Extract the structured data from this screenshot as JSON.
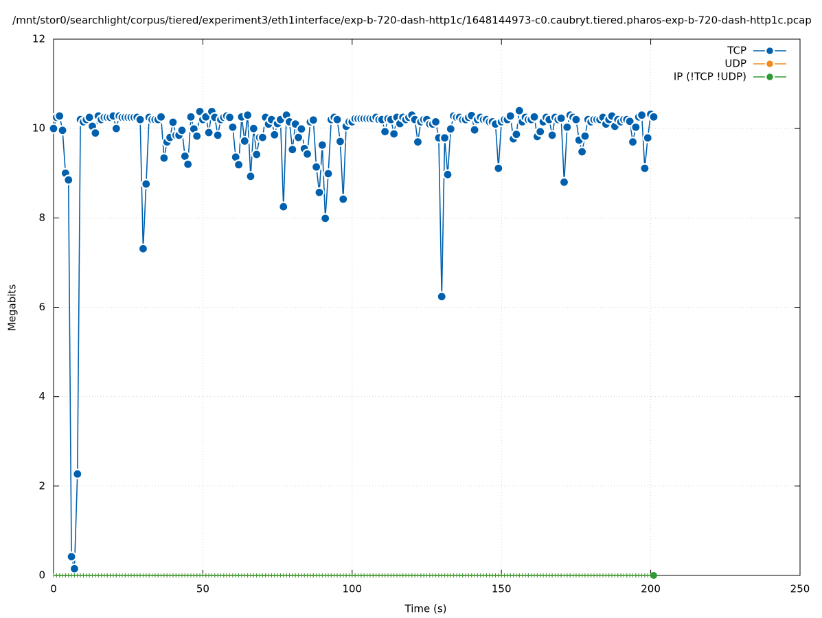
{
  "chart_data": {
    "type": "line",
    "title": "/mnt/stor0/searchlight/corpus/tiered/experiment3/eth1interface/exp-b-720-dash-http1c/1648144973-c0.caubryt.tiered.pharos-exp-b-720-dash-http1c.pcap",
    "x_label": "Time (s)",
    "y_label": "Megabits",
    "xlim": [
      0,
      250
    ],
    "xticks": [
      0,
      50,
      100,
      150,
      200,
      250
    ],
    "ylim": [
      0,
      12
    ],
    "yticks": [
      0,
      2,
      4,
      6,
      8,
      10,
      12
    ],
    "grid": true,
    "legend": "top-right",
    "x": [
      0,
      1,
      2,
      3,
      4,
      5,
      6,
      7,
      8,
      9,
      10,
      11,
      12,
      13,
      14,
      15,
      16,
      17,
      18,
      19,
      20,
      21,
      22,
      23,
      24,
      25,
      26,
      27,
      28,
      29,
      30,
      31,
      32,
      33,
      34,
      35,
      36,
      37,
      38,
      39,
      40,
      41,
      42,
      43,
      44,
      45,
      46,
      47,
      48,
      49,
      50,
      51,
      52,
      53,
      54,
      55,
      56,
      57,
      58,
      59,
      60,
      61,
      62,
      63,
      64,
      65,
      66,
      67,
      68,
      69,
      70,
      71,
      72,
      73,
      74,
      75,
      76,
      77,
      78,
      79,
      80,
      81,
      82,
      83,
      84,
      85,
      86,
      87,
      88,
      89,
      90,
      91,
      92,
      93,
      94,
      95,
      96,
      97,
      98,
      99,
      100,
      101,
      102,
      103,
      104,
      105,
      106,
      107,
      108,
      109,
      110,
      111,
      112,
      113,
      114,
      115,
      116,
      117,
      118,
      119,
      120,
      121,
      122,
      123,
      124,
      125,
      126,
      127,
      128,
      129,
      130,
      131,
      132,
      133,
      134,
      135,
      136,
      137,
      138,
      139,
      140,
      141,
      142,
      143,
      144,
      145,
      146,
      147,
      148,
      149,
      150,
      151,
      152,
      153,
      154,
      155,
      156,
      157,
      158,
      159,
      160,
      161,
      162,
      163,
      164,
      165,
      166,
      167,
      168,
      169,
      170,
      171,
      172,
      173,
      174,
      175,
      176,
      177,
      178,
      179,
      180,
      181,
      182,
      183,
      184,
      185,
      186,
      187,
      188,
      189,
      190,
      191,
      192,
      193,
      194,
      195,
      196,
      197,
      198,
      199,
      200,
      201
    ],
    "series": [
      {
        "name": "TCP",
        "color": "#0060ad",
        "values": [
          10.0,
          10.25,
          10.28,
          9.96,
          9.0,
          8.85,
          0.42,
          0.15,
          2.27,
          10.2,
          10.15,
          10.2,
          10.25,
          10.05,
          9.9,
          10.28,
          10.2,
          10.25,
          10.25,
          10.25,
          10.28,
          10.0,
          10.28,
          10.25,
          10.25,
          10.25,
          10.25,
          10.25,
          10.25,
          10.2,
          7.31,
          8.76,
          10.25,
          10.2,
          10.2,
          10.2,
          10.26,
          9.34,
          9.7,
          9.8,
          10.14,
          9.85,
          9.85,
          9.96,
          9.38,
          9.2,
          10.26,
          9.99,
          9.83,
          10.38,
          10.2,
          10.26,
          9.91,
          10.38,
          10.25,
          9.85,
          10.2,
          10.25,
          10.28,
          10.25,
          10.03,
          9.36,
          9.19,
          10.26,
          9.72,
          10.3,
          8.93,
          10.0,
          9.42,
          9.8,
          9.8,
          10.25,
          10.1,
          10.2,
          9.86,
          10.11,
          10.2,
          8.25,
          10.3,
          10.15,
          9.53,
          10.1,
          9.8,
          9.99,
          9.55,
          9.43,
          10.15,
          10.19,
          9.14,
          8.57,
          9.63,
          7.99,
          8.99,
          10.2,
          10.25,
          10.2,
          9.71,
          8.42,
          10.05,
          10.15,
          10.15,
          10.22,
          10.22,
          10.22,
          10.22,
          10.22,
          10.22,
          10.22,
          10.25,
          10.2,
          10.2,
          9.93,
          10.22,
          10.2,
          9.88,
          10.25,
          10.11,
          10.25,
          10.2,
          10.25,
          10.3,
          10.2,
          9.7,
          10.15,
          10.2,
          10.2,
          10.1,
          10.1,
          10.15,
          9.79,
          6.24,
          9.79,
          8.97,
          9.99,
          10.28,
          10.25,
          10.25,
          10.2,
          10.2,
          10.25,
          10.29,
          9.97,
          10.2,
          10.25,
          10.2,
          10.2,
          10.15,
          10.15,
          10.1,
          9.11,
          10.15,
          10.2,
          10.2,
          10.28,
          9.77,
          9.87,
          10.4,
          10.15,
          10.25,
          10.2,
          10.2,
          10.26,
          9.82,
          9.93,
          10.15,
          10.25,
          10.2,
          9.85,
          10.25,
          10.2,
          10.23,
          8.8,
          10.03,
          10.3,
          10.25,
          10.2,
          9.74,
          9.48,
          9.83,
          10.2,
          10.15,
          10.2,
          10.2,
          10.2,
          10.25,
          10.1,
          10.2,
          10.28,
          10.05,
          10.2,
          10.15,
          10.2,
          10.2,
          10.16,
          9.7,
          10.03,
          10.26,
          10.3,
          9.11,
          9.79,
          10.32,
          10.26
        ]
      },
      {
        "name": "UDP",
        "color": "#f28a1e",
        "values": [
          0,
          0,
          0,
          0,
          0,
          0,
          0,
          0,
          0,
          0,
          0,
          0,
          0,
          0,
          0,
          0,
          0,
          0,
          0,
          0,
          0,
          0,
          0,
          0,
          0,
          0,
          0,
          0,
          0,
          0,
          0,
          0,
          0,
          0,
          0,
          0,
          0,
          0,
          0,
          0,
          0,
          0,
          0,
          0,
          0,
          0,
          0,
          0,
          0,
          0,
          0,
          0,
          0,
          0,
          0,
          0,
          0,
          0,
          0,
          0,
          0,
          0,
          0,
          0,
          0,
          0,
          0,
          0,
          0,
          0,
          0,
          0,
          0,
          0,
          0,
          0,
          0,
          0,
          0,
          0,
          0,
          0,
          0,
          0,
          0,
          0,
          0,
          0,
          0,
          0,
          0,
          0,
          0,
          0,
          0,
          0,
          0,
          0,
          0,
          0,
          0,
          0,
          0,
          0,
          0,
          0,
          0,
          0,
          0,
          0,
          0,
          0,
          0,
          0,
          0,
          0,
          0,
          0,
          0,
          0,
          0,
          0,
          0,
          0,
          0,
          0,
          0,
          0,
          0,
          0,
          0,
          0,
          0,
          0,
          0,
          0,
          0,
          0,
          0,
          0,
          0,
          0,
          0,
          0,
          0,
          0,
          0,
          0,
          0,
          0,
          0,
          0,
          0,
          0,
          0,
          0,
          0,
          0,
          0,
          0,
          0,
          0,
          0,
          0,
          0,
          0,
          0,
          0,
          0,
          0,
          0,
          0,
          0,
          0,
          0,
          0,
          0,
          0,
          0,
          0,
          0,
          0,
          0,
          0,
          0,
          0,
          0,
          0,
          0,
          0,
          0,
          0,
          0,
          0,
          0,
          0,
          0,
          0,
          0,
          0,
          0,
          0
        ]
      },
      {
        "name": "IP (!TCP  !UDP)",
        "color": "#2e9a35",
        "values": [
          0,
          0,
          0,
          0,
          0,
          0,
          0,
          0,
          0,
          0,
          0,
          0,
          0,
          0,
          0,
          0,
          0,
          0,
          0,
          0,
          0,
          0,
          0,
          0,
          0,
          0,
          0,
          0,
          0,
          0,
          0,
          0,
          0,
          0,
          0,
          0,
          0,
          0,
          0,
          0,
          0,
          0,
          0,
          0,
          0,
          0,
          0,
          0,
          0,
          0,
          0,
          0,
          0,
          0,
          0,
          0,
          0,
          0,
          0,
          0,
          0,
          0,
          0,
          0,
          0,
          0,
          0,
          0,
          0,
          0,
          0,
          0,
          0,
          0,
          0,
          0,
          0,
          0,
          0,
          0,
          0,
          0,
          0,
          0,
          0,
          0,
          0,
          0,
          0,
          0,
          0,
          0,
          0,
          0,
          0,
          0,
          0,
          0,
          0,
          0,
          0,
          0,
          0,
          0,
          0,
          0,
          0,
          0,
          0,
          0,
          0,
          0,
          0,
          0,
          0,
          0,
          0,
          0,
          0,
          0,
          0,
          0,
          0,
          0,
          0,
          0,
          0,
          0,
          0,
          0,
          0,
          0,
          0,
          0,
          0,
          0,
          0,
          0,
          0,
          0,
          0,
          0,
          0,
          0,
          0,
          0,
          0,
          0,
          0,
          0,
          0,
          0,
          0,
          0,
          0,
          0,
          0,
          0,
          0,
          0,
          0,
          0,
          0,
          0,
          0,
          0,
          0,
          0,
          0,
          0,
          0,
          0,
          0,
          0,
          0,
          0,
          0,
          0,
          0,
          0,
          0,
          0,
          0,
          0,
          0,
          0,
          0,
          0,
          0,
          0,
          0,
          0,
          0,
          0,
          0,
          0,
          0,
          0,
          0,
          0,
          0,
          0
        ]
      }
    ]
  }
}
